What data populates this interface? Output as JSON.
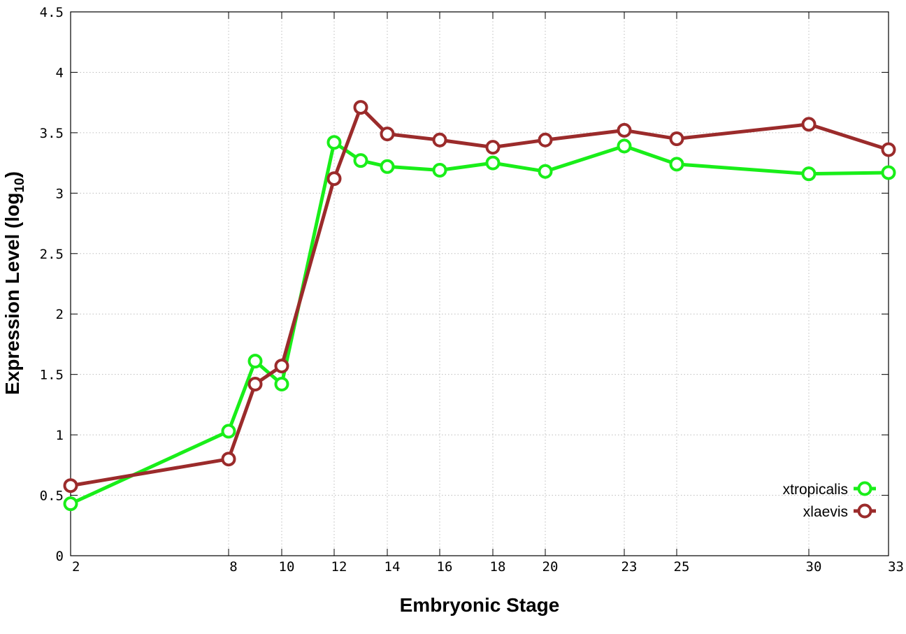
{
  "chart_data": {
    "type": "line",
    "xlabel": "Embryonic Stage",
    "ylabel": "Expression Level (log",
    "ylabel_subscript": "10",
    "ylabel_suffix": ")",
    "x_ticks": [
      "2",
      "8",
      "10",
      "12",
      "14",
      "16",
      "18",
      "20",
      "23",
      "25",
      "30",
      "33"
    ],
    "y_ticks": [
      "0",
      "0.5",
      "1",
      "1.5",
      "2",
      "2.5",
      "3",
      "3.5",
      "4",
      "4.5"
    ],
    "ylim": [
      0,
      4.5
    ],
    "grid": true,
    "legend_position": "bottom-right",
    "x": [
      "2",
      "8",
      "9",
      "10",
      "12",
      "13",
      "14",
      "16",
      "18",
      "20",
      "23",
      "25",
      "30",
      "33"
    ],
    "series": [
      {
        "name": "xtropicalis",
        "color": "#19ee19",
        "values": [
          0.43,
          1.03,
          1.61,
          1.42,
          3.42,
          3.27,
          3.22,
          3.19,
          3.25,
          3.18,
          3.39,
          3.24,
          3.16,
          3.17
        ]
      },
      {
        "name": "xlaevis",
        "color": "#9b2b2b",
        "values": [
          0.58,
          0.8,
          1.42,
          1.57,
          3.12,
          3.71,
          3.49,
          3.44,
          3.38,
          3.44,
          3.52,
          3.45,
          3.57,
          3.36
        ]
      }
    ]
  }
}
